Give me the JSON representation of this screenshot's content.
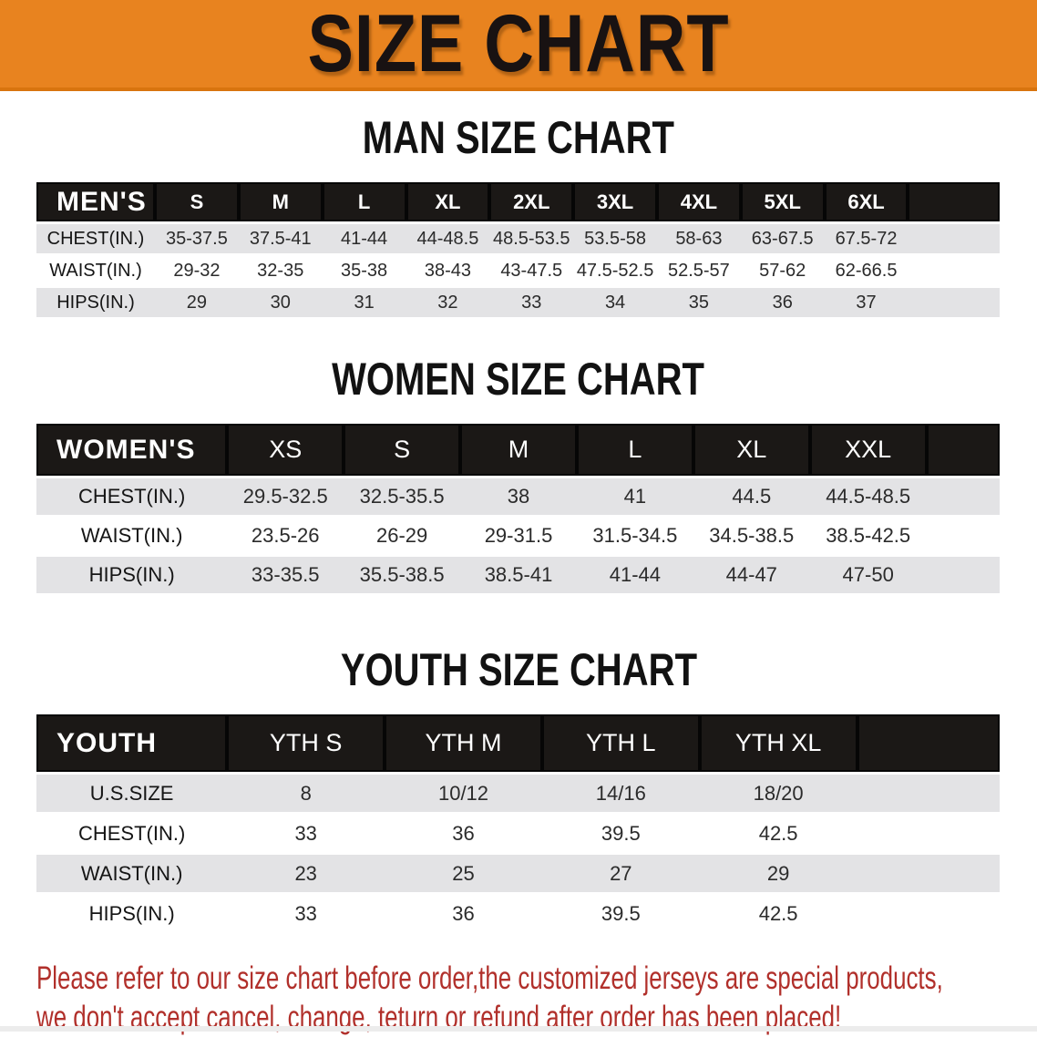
{
  "banner": {
    "title": "SIZE CHART",
    "bg_color": "#e8831f"
  },
  "sections": [
    {
      "heading": "MAN SIZE CHART",
      "table": {
        "header_label": "MEN'S",
        "columns": [
          "S",
          "M",
          "L",
          "XL",
          "2XL",
          "3XL",
          "4XL",
          "5XL",
          "6XL"
        ],
        "rows": [
          {
            "label": "CHEST(IN.)",
            "values": [
              "35-37.5",
              "37.5-41",
              "41-44",
              "44-48.5",
              "48.5-53.5",
              "53.5-58",
              "58-63",
              "63-67.5",
              "67.5-72"
            ]
          },
          {
            "label": "WAIST(IN.)",
            "values": [
              "29-32",
              "32-35",
              "35-38",
              "38-43",
              "43-47.5",
              "47.5-52.5",
              "52.5-57",
              "57-62",
              "62-66.5"
            ]
          },
          {
            "label": "HIPS(IN.)",
            "values": [
              "29",
              "30",
              "31",
              "32",
              "33",
              "34",
              "35",
              "36",
              "37"
            ]
          }
        ]
      }
    },
    {
      "heading": "WOMEN SIZE CHART",
      "table": {
        "header_label": "WOMEN'S",
        "columns": [
          "XS",
          "S",
          "M",
          "L",
          "XL",
          "XXL"
        ],
        "rows": [
          {
            "label": "CHEST(IN.)",
            "values": [
              "29.5-32.5",
              "32.5-35.5",
              "38",
              "41",
              "44.5",
              "44.5-48.5"
            ]
          },
          {
            "label": "WAIST(IN.)",
            "values": [
              "23.5-26",
              "26-29",
              "29-31.5",
              "31.5-34.5",
              "34.5-38.5",
              "38.5-42.5"
            ]
          },
          {
            "label": "HIPS(IN.)",
            "values": [
              "33-35.5",
              "35.5-38.5",
              "38.5-41",
              "41-44",
              "44-47",
              "47-50"
            ]
          }
        ]
      }
    },
    {
      "heading": "YOUTH SIZE CHART",
      "table": {
        "header_label": "YOUTH",
        "columns": [
          "YTH S",
          "YTH M",
          "YTH L",
          "YTH XL"
        ],
        "rows": [
          {
            "label": "U.S.SIZE",
            "values": [
              "8",
              "10/12",
              "14/16",
              "18/20"
            ]
          },
          {
            "label": "CHEST(IN.)",
            "values": [
              "33",
              "36",
              "39.5",
              "42.5"
            ]
          },
          {
            "label": "WAIST(IN.)",
            "values": [
              "23",
              "25",
              "27",
              "29"
            ]
          },
          {
            "label": "HIPS(IN.)",
            "values": [
              "33",
              "36",
              "39.5",
              "42.5"
            ]
          }
        ]
      }
    }
  ],
  "footer": {
    "line1": "Please refer to our size chart before order,the customized jerseys are special products,",
    "line2": "we don't accept cancel, change, teturn or refund after order has been placed!",
    "text_color": "#b1302b"
  },
  "style_colors": {
    "banner_orange": "#e8831f",
    "header_band_black": "#1b1816",
    "stripe_gray": "#e3e3e5",
    "notice_red": "#b1302b"
  }
}
